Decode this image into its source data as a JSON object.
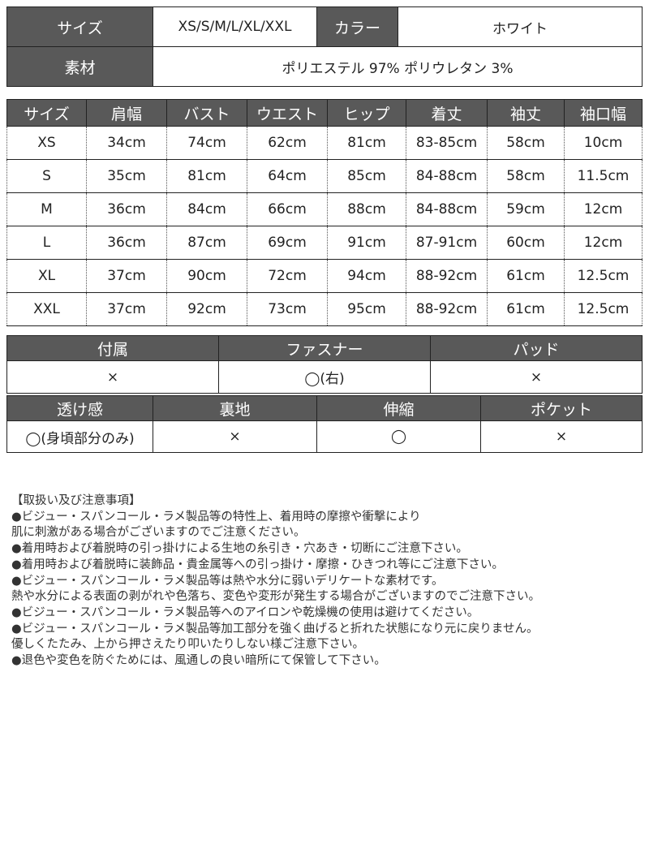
{
  "spec": {
    "size_label": "サイズ",
    "size_value": "XS/S/M/L/XL/XXL",
    "color_label": "カラー",
    "color_value": "ホワイト",
    "material_label": "素材",
    "material_value": "ポリエステル 97% ポリウレタン 3%"
  },
  "size_table": {
    "headers": [
      "サイズ",
      "肩幅",
      "バスト",
      "ウエスト",
      "ヒップ",
      "着丈",
      "袖丈",
      "袖口幅"
    ],
    "rows": [
      [
        "XS",
        "34cm",
        "74cm",
        "62cm",
        "81cm",
        "83-85cm",
        "58cm",
        "10cm"
      ],
      [
        "S",
        "35cm",
        "81cm",
        "64cm",
        "85cm",
        "84-88cm",
        "58cm",
        "11.5cm"
      ],
      [
        "M",
        "36cm",
        "84cm",
        "66cm",
        "88cm",
        "84-88cm",
        "59cm",
        "12cm"
      ],
      [
        "L",
        "36cm",
        "87cm",
        "69cm",
        "91cm",
        "87-91cm",
        "60cm",
        "12cm"
      ],
      [
        "XL",
        "37cm",
        "90cm",
        "72cm",
        "94cm",
        "88-92cm",
        "61cm",
        "12.5cm"
      ],
      [
        "XXL",
        "37cm",
        "92cm",
        "73cm",
        "95cm",
        "88-92cm",
        "61cm",
        "12.5cm"
      ]
    ]
  },
  "features1": {
    "headers": [
      "付属",
      "ファスナー",
      "パッド"
    ],
    "values": [
      "×",
      "◯(右)",
      "×"
    ]
  },
  "features2": {
    "headers": [
      "透け感",
      "裏地",
      "伸縮",
      "ポケット"
    ],
    "values": [
      "◯(身頃部分のみ)",
      "×",
      "◯",
      "×"
    ]
  },
  "notes": [
    "【取扱い及び注意事項】",
    "●ビジュー・スパンコール・ラメ製品等の特性上、着用時の摩擦や衝撃により",
    "肌に刺激がある場合がございますのでご注意ください。",
    "●着用時および着脱時の引っ掛けによる生地の糸引き・穴あき・切断にご注意下さい。",
    "●着用時および着脱時に装飾品・貴金属等への引っ掛け・摩擦・ひきつれ等にご注意下さい。",
    "●ビジュー・スパンコール・ラメ製品等は熱や水分に弱いデリケートな素材です。",
    "熱や水分による表面の剥がれや色落ち、変色や変形が発生する場合がございますのでご注意下さい。",
    "●ビジュー・スパンコール・ラメ製品等へのアイロンや乾燥機の使用は避けてください。",
    "●ビジュー・スパンコール・ラメ製品等加工部分を強く曲げると折れた状態になり元に戻りません。",
    "優しくたたみ、上から押さえたり叩いたりしない様ご注意下さい。",
    "●退色や変色を防ぐためには、風通しの良い暗所にて保管して下さい。"
  ]
}
